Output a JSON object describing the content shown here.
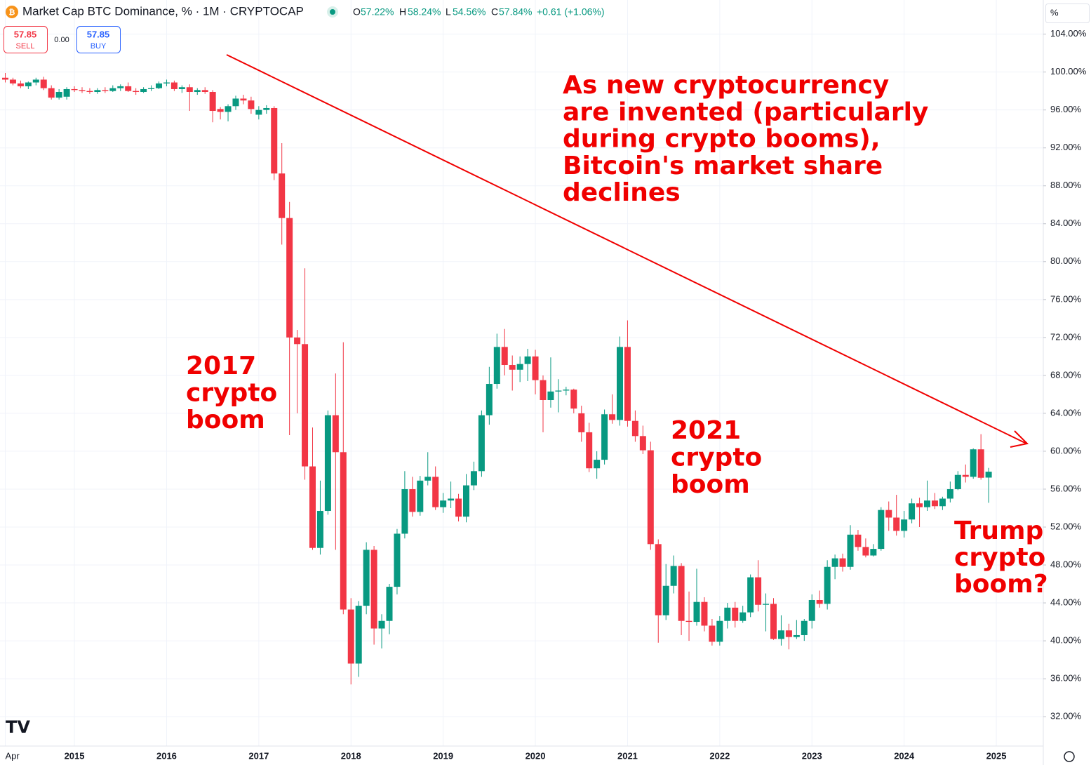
{
  "header": {
    "title": "Market Cap BTC Dominance, % · 1M · CRYPTOCAP",
    "o_key": "O",
    "o": "57.22%",
    "h_key": "H",
    "h": "58.24%",
    "l_key": "L",
    "l": "54.56%",
    "c_key": "C",
    "c": "57.84%",
    "change": "+0.61 (+1.06%)",
    "sell_price": "57.85",
    "sell": "SELL",
    "spread": "0.00",
    "buy_price": "57.85",
    "buy": "BUY",
    "unit": "%"
  },
  "chart_data": {
    "type": "candlestick",
    "categories": [
      "Apr",
      null,
      null,
      null,
      null,
      null,
      null,
      null,
      null,
      "2015",
      null,
      null,
      null,
      null,
      null,
      null,
      null,
      null,
      null,
      null,
      null,
      "2016",
      null,
      null,
      null,
      null,
      null,
      null,
      null,
      null,
      null,
      null,
      null,
      "2017",
      null,
      null,
      null,
      null,
      null,
      null,
      null,
      null,
      null,
      null,
      null,
      "2018",
      null,
      null,
      null,
      null,
      null,
      null,
      null,
      null,
      null,
      null,
      null,
      "2019",
      null,
      null,
      null,
      null,
      null,
      null,
      null,
      null,
      null,
      null,
      null,
      "2020",
      null,
      null,
      null,
      null,
      null,
      null,
      null,
      null,
      null,
      null,
      null,
      "2021",
      null,
      null,
      null,
      null,
      null,
      null,
      null,
      null,
      null,
      null,
      null,
      "2022",
      null,
      null,
      null,
      null,
      null,
      null,
      null,
      null,
      null,
      null,
      null,
      "2023",
      null,
      null,
      null,
      null,
      null,
      null,
      null,
      null,
      null,
      null,
      null,
      "2024",
      null,
      null,
      null,
      null,
      null,
      null,
      null,
      null,
      null,
      null,
      null,
      "2025"
    ],
    "open": [
      99.4,
      99.2,
      98.8,
      98.5,
      98.9,
      99.2,
      98.3,
      97.3,
      97.4,
      98.2,
      98.1,
      98.0,
      97.9,
      98.1,
      98.0,
      98.3,
      98.5,
      98.0,
      97.9,
      98.2,
      98.3,
      98.8,
      98.9,
      98.2,
      98.4,
      97.9,
      98.1,
      97.9,
      96.1,
      95.8,
      96.4,
      97.2,
      97.0,
      95.5,
      96.0,
      96.2,
      89.3,
      84.6,
      72.0,
      71.3,
      58.4,
      49.8,
      53.7,
      63.8,
      59.9,
      43.3,
      37.6,
      43.7,
      49.6,
      41.3,
      42.1,
      45.7,
      51.3,
      56.0,
      53.6,
      56.9,
      57.3,
      54.1,
      54.8,
      55.0,
      53.1,
      56.4,
      57.9,
      63.8,
      67.1,
      71.0,
      69.1,
      68.6,
      69.2,
      70.0,
      67.5,
      65.4,
      66.3,
      66.4,
      66.5,
      64.0,
      62.0,
      58.2,
      59.1,
      63.9,
      63.3,
      71.0,
      63.2,
      61.6,
      60.1,
      50.2,
      42.7,
      45.8,
      47.9,
      42.1,
      42.0,
      44.1,
      41.6,
      39.9,
      42.1,
      43.5,
      42.1,
      43.0,
      46.7,
      43.8,
      43.9,
      40.2,
      41.1,
      40.4,
      40.6,
      42.1,
      44.3,
      43.9,
      47.8,
      48.7,
      47.8,
      51.2,
      49.9,
      49.0,
      49.7,
      53.8,
      53.0,
      51.6,
      52.8,
      54.5,
      54.1,
      54.8,
      54.2,
      55.0,
      56.0,
      57.5,
      57.3,
      60.2,
      57.22,
      null
    ],
    "high": [
      99.9,
      99.4,
      99.1,
      99.0,
      99.4,
      99.5,
      98.6,
      98.2,
      98.4,
      98.5,
      98.4,
      98.3,
      98.3,
      98.4,
      98.6,
      98.7,
      98.9,
      98.3,
      98.4,
      98.6,
      99.0,
      99.2,
      99.1,
      98.6,
      98.7,
      98.3,
      98.4,
      98.1,
      96.3,
      96.6,
      97.5,
      97.6,
      97.4,
      96.4,
      96.5,
      96.4,
      92.5,
      86.3,
      72.8,
      79.3,
      62.5,
      56.9,
      64.3,
      68.2,
      71.5,
      44.5,
      44.2,
      50.4,
      50.0,
      42.8,
      46.0,
      51.8,
      57.9,
      57.3,
      57.4,
      59.9,
      58.4,
      55.6,
      56.8,
      55.5,
      57.6,
      58.9,
      64.3,
      68.9,
      72.4,
      72.9,
      70.1,
      70.0,
      70.8,
      70.7,
      68.0,
      69.9,
      67.6,
      66.8,
      66.6,
      64.8,
      63.0,
      60.0,
      64.4,
      66.0,
      72.1,
      73.8,
      64.3,
      62.7,
      61.0,
      50.7,
      48.1,
      49.0,
      48.2,
      45.2,
      47.6,
      44.6,
      42.3,
      42.6,
      44.0,
      44.1,
      43.7,
      47.0,
      48.5,
      45.0,
      44.5,
      42.7,
      41.8,
      42.2,
      42.3,
      44.9,
      45.3,
      48.5,
      49.1,
      49.2,
      52.2,
      51.7,
      50.8,
      50.2,
      54.1,
      54.7,
      55.4,
      53.7,
      55.0,
      55.1,
      56.9,
      55.6,
      55.2,
      56.8,
      57.9,
      58.6,
      60.3,
      61.8,
      58.24,
      null
    ],
    "low": [
      98.9,
      98.6,
      98.3,
      98.2,
      98.6,
      98.1,
      97.1,
      97.1,
      97.1,
      97.9,
      97.8,
      97.7,
      97.7,
      97.8,
      97.9,
      98.0,
      97.9,
      97.6,
      97.8,
      98.0,
      98.2,
      98.5,
      98.0,
      97.8,
      95.9,
      97.6,
      97.7,
      94.7,
      95.0,
      94.8,
      96.0,
      96.6,
      95.6,
      95.0,
      95.6,
      88.6,
      81.8,
      61.7,
      64.0,
      57.0,
      49.6,
      49.1,
      53.3,
      49.6,
      42.8,
      35.4,
      36.2,
      42.8,
      39.6,
      39.2,
      40.7,
      44.9,
      50.8,
      53.1,
      53.2,
      56.4,
      53.8,
      53.5,
      54.0,
      52.6,
      52.5,
      55.9,
      57.3,
      62.8,
      66.6,
      68.0,
      66.4,
      67.3,
      67.4,
      66.0,
      62.0,
      64.6,
      64.1,
      65.9,
      64.0,
      61.0,
      57.8,
      57.1,
      58.6,
      62.9,
      62.7,
      62.6,
      61.0,
      59.7,
      49.6,
      39.8,
      42.2,
      45.0,
      40.6,
      40.0,
      41.6,
      41.0,
      39.5,
      39.5,
      41.3,
      41.4,
      41.9,
      42.5,
      43.1,
      41.0,
      40.1,
      39.5,
      39.1,
      40.2,
      40.0,
      41.3,
      43.5,
      43.3,
      46.5,
      47.3,
      47.5,
      49.5,
      48.8,
      48.9,
      49.5,
      51.6,
      51.1,
      50.9,
      52.4,
      52.0,
      53.7,
      53.9,
      53.8,
      54.6,
      55.9,
      56.7,
      57.1,
      57.0,
      54.56,
      null
    ],
    "close": [
      99.2,
      98.8,
      98.5,
      98.9,
      99.2,
      98.3,
      97.3,
      97.9,
      98.2,
      98.1,
      98.0,
      97.9,
      98.1,
      98.0,
      98.3,
      98.5,
      98.0,
      97.9,
      98.2,
      98.3,
      98.8,
      98.9,
      98.2,
      98.4,
      97.9,
      98.1,
      97.9,
      95.9,
      95.8,
      96.4,
      97.2,
      97.0,
      96.1,
      96.0,
      96.2,
      89.3,
      84.6,
      72.0,
      71.3,
      58.4,
      49.8,
      53.7,
      63.8,
      59.9,
      43.3,
      37.6,
      43.7,
      49.6,
      41.3,
      42.1,
      45.7,
      51.3,
      56.0,
      53.6,
      56.9,
      57.3,
      54.1,
      54.8,
      55.0,
      53.1,
      56.4,
      57.9,
      63.8,
      67.1,
      71.0,
      69.1,
      68.6,
      69.2,
      70.0,
      67.5,
      65.4,
      66.3,
      66.4,
      66.5,
      64.5,
      62.0,
      58.2,
      59.1,
      63.9,
      63.3,
      71.0,
      63.2,
      61.6,
      60.1,
      50.2,
      42.7,
      45.8,
      47.9,
      42.1,
      42.0,
      44.1,
      41.6,
      39.9,
      42.1,
      43.5,
      42.1,
      43.0,
      46.7,
      43.8,
      43.9,
      40.2,
      41.1,
      40.4,
      40.6,
      42.1,
      44.3,
      43.9,
      47.8,
      48.7,
      47.8,
      51.2,
      49.9,
      49.0,
      49.7,
      53.8,
      53.0,
      51.6,
      52.8,
      54.5,
      54.1,
      54.8,
      54.2,
      55.0,
      56.0,
      57.5,
      57.3,
      60.2,
      57.2,
      57.84,
      null
    ],
    "up_color": "#089981",
    "down_color": "#f23645",
    "ylim": [
      28.9,
      107.6
    ],
    "yticks": [
      {
        "value": 32,
        "label": "32.00%"
      },
      {
        "value": 36,
        "label": "36.00%"
      },
      {
        "value": 40,
        "label": "40.00%"
      },
      {
        "value": 44,
        "label": "44.00%"
      },
      {
        "value": 48,
        "label": "48.00%"
      },
      {
        "value": 52,
        "label": "52.00%"
      },
      {
        "value": 56,
        "label": "56.00%"
      },
      {
        "value": 60,
        "label": "60.00%"
      },
      {
        "value": 64,
        "label": "64.00%"
      },
      {
        "value": 68,
        "label": "68.00%"
      },
      {
        "value": 72,
        "label": "72.00%"
      },
      {
        "value": 76,
        "label": "76.00%"
      },
      {
        "value": 80,
        "label": "80.00%"
      },
      {
        "value": 84,
        "label": "84.00%"
      },
      {
        "value": 88,
        "label": "88.00%"
      },
      {
        "value": 92,
        "label": "92.00%"
      },
      {
        "value": 96,
        "label": "96.00%"
      },
      {
        "value": 100,
        "label": "100.00%"
      },
      {
        "value": 104,
        "label": "104.00%"
      }
    ],
    "grid": true,
    "annotations": {
      "trend": [
        "As new cryptocurrency",
        "are invented (particularly",
        "during crypto booms),",
        "Bitcoin's market share",
        "declines"
      ],
      "boom_2017": [
        "2017",
        "crypto",
        "boom"
      ],
      "boom_2021": [
        "2021",
        "crypto",
        "boom"
      ],
      "boom_trump": [
        "Trump",
        "crypto",
        "boom?"
      ]
    }
  }
}
